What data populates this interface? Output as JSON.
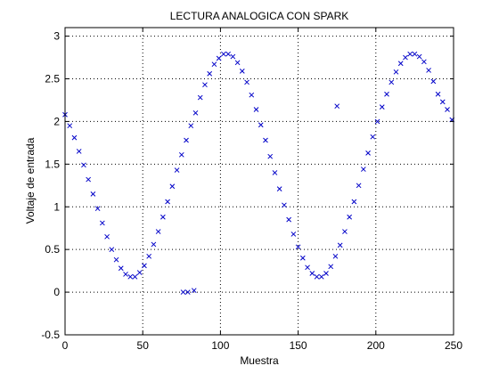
{
  "chart_data": {
    "type": "scatter",
    "title": "LECTURA ANALOGICA CON SPARK",
    "xlabel": "Muestra",
    "ylabel": "Voltaje de entrada",
    "xlim": [
      0,
      250
    ],
    "ylim": [
      -0.5,
      3.1
    ],
    "xticks": [
      "0",
      "50",
      "100",
      "150",
      "200",
      "250"
    ],
    "xtick_values": [
      0,
      50,
      100,
      150,
      200,
      250
    ],
    "yticks": [
      "-0.5",
      "0",
      "0.5",
      "1",
      "1.5",
      "2",
      "2.5",
      "3"
    ],
    "ytick_values": [
      -0.5,
      0,
      0.5,
      1,
      1.5,
      2,
      2.5,
      3
    ],
    "grid": true,
    "marker": "x",
    "marker_color": "#0000c8",
    "series": [
      {
        "x": [
          0,
          3,
          6,
          9,
          12,
          15,
          18,
          21,
          24,
          27,
          30,
          33,
          36,
          39,
          42,
          45,
          48,
          51,
          54,
          57,
          60,
          63,
          66,
          69,
          72,
          75,
          78,
          81,
          84,
          87,
          90,
          93,
          96,
          99,
          102,
          105,
          108,
          111,
          114,
          117,
          120,
          123,
          126,
          129,
          132,
          135,
          138,
          141,
          144,
          147,
          150,
          153,
          156,
          159,
          162,
          165,
          168,
          171,
          174,
          177,
          180,
          183,
          186,
          189,
          192,
          195,
          198,
          201,
          204,
          207,
          210,
          213,
          216,
          219,
          222,
          225,
          228,
          231,
          234,
          237,
          240,
          243,
          246,
          249,
          76,
          79,
          83,
          175
        ],
        "y": [
          2.08,
          1.95,
          1.81,
          1.65,
          1.49,
          1.32,
          1.15,
          0.98,
          0.81,
          0.65,
          0.5,
          0.38,
          0.28,
          0.21,
          0.18,
          0.18,
          0.23,
          0.31,
          0.42,
          0.56,
          0.71,
          0.88,
          1.06,
          1.24,
          1.43,
          1.61,
          1.78,
          1.95,
          2.1,
          2.28,
          2.43,
          2.56,
          2.67,
          2.74,
          2.79,
          2.79,
          2.76,
          2.69,
          2.59,
          2.46,
          2.31,
          2.14,
          1.96,
          1.78,
          1.59,
          1.4,
          1.21,
          1.02,
          0.85,
          0.68,
          0.53,
          0.4,
          0.29,
          0.22,
          0.18,
          0.18,
          0.22,
          0.3,
          0.42,
          0.55,
          0.71,
          0.88,
          1.06,
          1.25,
          1.44,
          1.63,
          1.82,
          2.0,
          2.17,
          2.32,
          2.46,
          2.58,
          2.68,
          2.75,
          2.79,
          2.79,
          2.76,
          2.7,
          2.6,
          2.47,
          2.32,
          2.23,
          2.14,
          2.02,
          0.0,
          0.0,
          0.02,
          2.18
        ]
      }
    ]
  }
}
